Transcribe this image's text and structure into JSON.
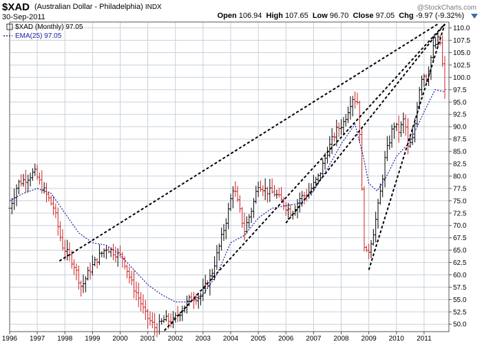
{
  "header": {
    "symbol": "$XAD",
    "name": "(Australian Dollar - Philadelphia)",
    "exchange": "INDX",
    "date": "30-Sep-2011",
    "watermark": "@StockCharts.com",
    "open_label": "Open",
    "open": "106.94",
    "high_label": "High",
    "high": "107.65",
    "low_label": "Low",
    "low": "96.70",
    "close_label": "Close",
    "close": "97.05",
    "chg_label": "Chg",
    "chg": "-9.97 (-9.32%)"
  },
  "legend": {
    "price_label": "$XAD (Monthly) 97.05",
    "ema_label": "EMA(25) 97.05"
  },
  "colors": {
    "up_bar": "#000000",
    "down_bar": "#d02020",
    "ema": "#1a1aa0",
    "grid": "#c8d0dc",
    "frame": "#555555",
    "trendline": "#000000"
  },
  "chart_data": {
    "type": "ohlc",
    "x_axis_labels": [
      "1996",
      "1997",
      "1998",
      "1999",
      "2000",
      "2001",
      "2002",
      "2003",
      "2004",
      "2005",
      "2006",
      "2007",
      "2008",
      "2009",
      "2010",
      "2011"
    ],
    "y_axis_labels": [
      "50.0",
      "52.5",
      "55.0",
      "57.5",
      "60.0",
      "62.5",
      "65.0",
      "67.5",
      "70.0",
      "72.5",
      "75.0",
      "77.5",
      "80.0",
      "82.5",
      "85.0",
      "87.5",
      "90.0",
      "92.5",
      "95.0",
      "97.5",
      "100.0",
      "102.5",
      "105.0",
      "107.5",
      "110.0"
    ],
    "ylim": [
      48.5,
      111.2
    ],
    "xlim": [
      1996.0,
      2011.9
    ],
    "grid": true,
    "key_closes": [
      [
        1996.0,
        73.5
      ],
      [
        1996.3,
        78.5
      ],
      [
        1996.6,
        79.5
      ],
      [
        1996.9,
        80.8
      ],
      [
        1997.2,
        77.5
      ],
      [
        1997.6,
        73.5
      ],
      [
        1997.9,
        66.0
      ],
      [
        1998.3,
        62.5
      ],
      [
        1998.6,
        57.5
      ],
      [
        1998.9,
        61.0
      ],
      [
        1999.2,
        63.5
      ],
      [
        1999.5,
        65.5
      ],
      [
        1999.8,
        64.5
      ],
      [
        2000.1,
        63.5
      ],
      [
        2000.4,
        58.5
      ],
      [
        2000.7,
        55.0
      ],
      [
        2000.9,
        52.0
      ],
      [
        2001.3,
        49.0
      ],
      [
        2001.6,
        51.0
      ],
      [
        2001.9,
        50.5
      ],
      [
        2002.3,
        53.5
      ],
      [
        2002.6,
        55.5
      ],
      [
        2002.9,
        55.5
      ],
      [
        2003.3,
        60.0
      ],
      [
        2003.6,
        66.0
      ],
      [
        2003.9,
        72.5
      ],
      [
        2004.1,
        78.0
      ],
      [
        2004.5,
        69.0
      ],
      [
        2004.8,
        74.0
      ],
      [
        2005.0,
        78.5
      ],
      [
        2005.3,
        77.0
      ],
      [
        2005.6,
        76.5
      ],
      [
        2005.9,
        74.5
      ],
      [
        2006.2,
        72.5
      ],
      [
        2006.5,
        75.5
      ],
      [
        2006.8,
        76.5
      ],
      [
        2007.2,
        80.0
      ],
      [
        2007.5,
        85.0
      ],
      [
        2007.8,
        89.0
      ],
      [
        2008.1,
        91.0
      ],
      [
        2008.4,
        96.0
      ],
      [
        2008.6,
        95.0
      ],
      [
        2008.7,
        86.0
      ],
      [
        2008.8,
        67.5
      ],
      [
        2008.9,
        64.0
      ],
      [
        2009.0,
        65.0
      ],
      [
        2009.2,
        69.5
      ],
      [
        2009.4,
        76.0
      ],
      [
        2009.6,
        84.0
      ],
      [
        2009.9,
        90.5
      ],
      [
        2010.1,
        89.0
      ],
      [
        2010.3,
        92.0
      ],
      [
        2010.4,
        85.5
      ],
      [
        2010.6,
        87.5
      ],
      [
        2010.8,
        97.0
      ],
      [
        2010.95,
        101.0
      ],
      [
        2011.1,
        99.5
      ],
      [
        2011.3,
        105.5
      ],
      [
        2011.5,
        107.5
      ],
      [
        2011.6,
        106.9
      ],
      [
        2011.75,
        97.05
      ]
    ],
    "ema_anchors": [
      [
        1996.0,
        75.0
      ],
      [
        1996.5,
        76.5
      ],
      [
        1997.0,
        77.5
      ],
      [
        1997.5,
        76.5
      ],
      [
        1998.0,
        72.5
      ],
      [
        1998.5,
        68.5
      ],
      [
        1999.0,
        66.5
      ],
      [
        1999.5,
        66.0
      ],
      [
        2000.0,
        64.0
      ],
      [
        2000.5,
        61.0
      ],
      [
        2001.0,
        58.0
      ],
      [
        2001.5,
        56.0
      ],
      [
        2002.0,
        54.5
      ],
      [
        2002.5,
        54.5
      ],
      [
        2003.0,
        56.0
      ],
      [
        2003.5,
        60.0
      ],
      [
        2004.0,
        66.5
      ],
      [
        2004.5,
        68.0
      ],
      [
        2005.0,
        71.5
      ],
      [
        2005.5,
        73.5
      ],
      [
        2006.0,
        74.0
      ],
      [
        2006.5,
        74.5
      ],
      [
        2007.0,
        77.0
      ],
      [
        2007.5,
        81.5
      ],
      [
        2008.0,
        86.5
      ],
      [
        2008.5,
        90.5
      ],
      [
        2008.8,
        84.0
      ],
      [
        2009.0,
        78.5
      ],
      [
        2009.3,
        77.0
      ],
      [
        2009.6,
        79.5
      ],
      [
        2010.0,
        84.0
      ],
      [
        2010.5,
        87.0
      ],
      [
        2011.0,
        93.0
      ],
      [
        2011.4,
        97.5
      ],
      [
        2011.75,
        97.05
      ]
    ],
    "trendlines": [
      {
        "from": [
          1997.8,
          62.8
        ],
        "to": [
          2011.5,
          110.8
        ]
      },
      {
        "from": [
          2001.6,
          48.7
        ],
        "to": [
          2011.75,
          110.8
        ]
      },
      {
        "from": [
          2006.0,
          70.5
        ],
        "to": [
          2011.75,
          110.8
        ]
      },
      {
        "from": [
          2009.0,
          61.0
        ],
        "to": [
          2011.75,
          110.8
        ]
      }
    ]
  }
}
